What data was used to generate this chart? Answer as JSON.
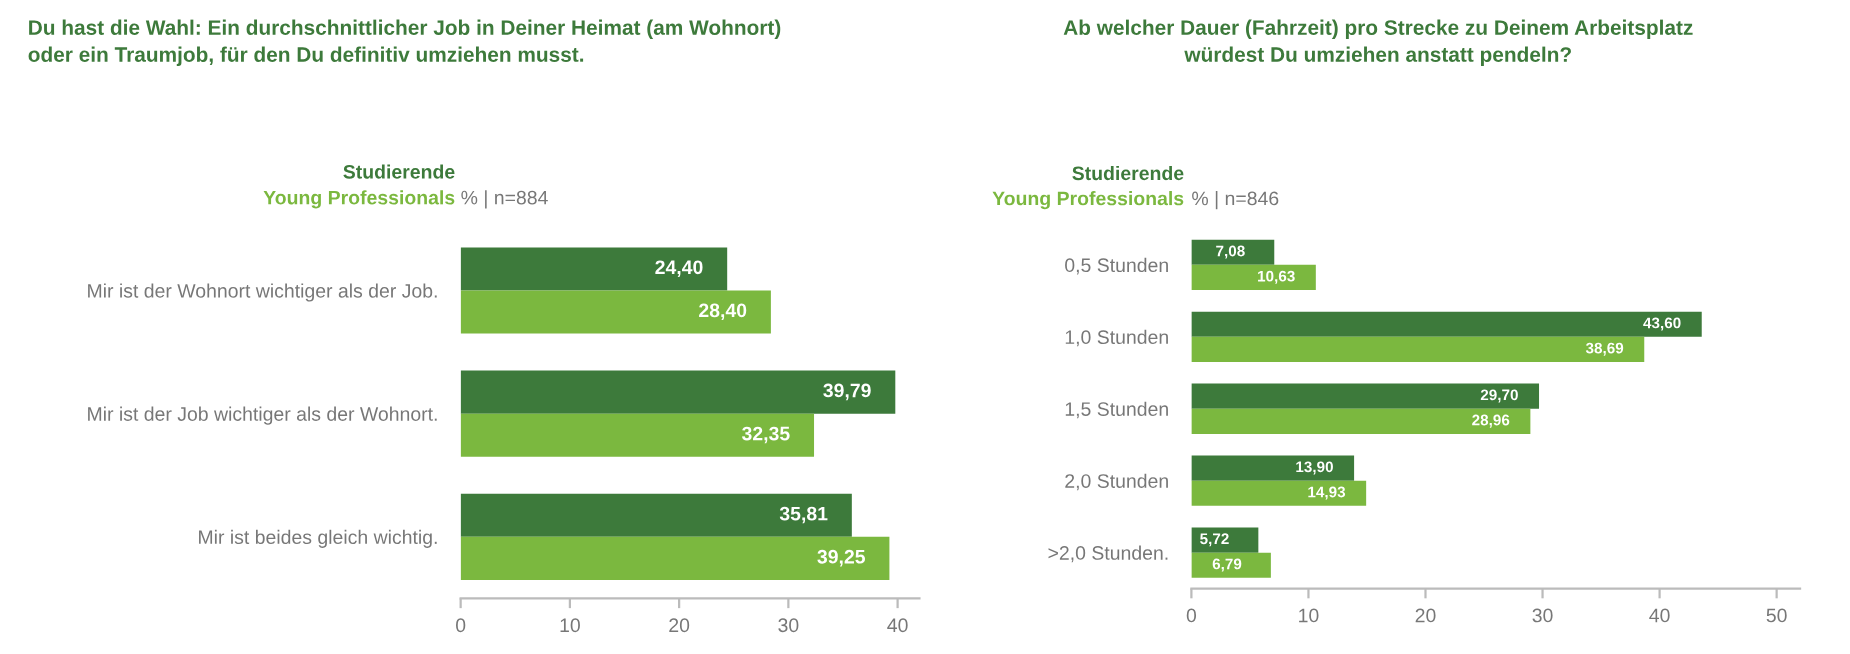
{
  "chart_data": [
    {
      "type": "bar",
      "orientation": "horizontal",
      "title": "Du hast die Wahl: Ein durchschnittlicher Job in Deiner Heimat (am Wohnort)\noder ein Traumjob, für den Du definitiv umziehen musst.",
      "subtitle": "% | n=884",
      "categories": [
        "Mir ist der Wohnort wichtiger als der Job.",
        "Mir ist der Job wichtiger als der Wohnort.",
        "Mir ist beides gleich wichtig."
      ],
      "series": [
        {
          "name": "Studierende",
          "color": "#3d7a3b",
          "values": [
            24.4,
            39.79,
            35.81
          ],
          "value_labels": [
            "24,40",
            "39,79",
            "35,81"
          ]
        },
        {
          "name": "Young Professionals",
          "color": "#7bb83f",
          "values": [
            28.4,
            32.35,
            39.25
          ],
          "value_labels": [
            "28,40",
            "32,35",
            "39,25"
          ]
        }
      ],
      "xlim": [
        0,
        42
      ],
      "xticks": [
        0,
        10,
        20,
        30,
        40
      ],
      "grid": false,
      "legend": "top left"
    },
    {
      "type": "bar",
      "orientation": "horizontal",
      "title": "Ab welcher Dauer (Fahrzeit) pro Strecke zu Deinem Arbeitsplatz\nwürdest Du umziehen anstatt pendeln?",
      "subtitle": "% | n=846",
      "categories": [
        "0,5 Stunden",
        "1,0 Stunden",
        "1,5 Stunden",
        "2,0 Stunden",
        ">2,0 Stunden."
      ],
      "series": [
        {
          "name": "Studierende",
          "color": "#3d7a3b",
          "values": [
            7.08,
            43.6,
            29.7,
            13.9,
            5.72
          ],
          "value_labels": [
            "7,08",
            "43,60",
            "29,70",
            "13,90",
            "5,72"
          ]
        },
        {
          "name": "Young Professionals",
          "color": "#7bb83f",
          "values": [
            10.63,
            38.69,
            28.96,
            14.93,
            6.79
          ],
          "value_labels": [
            "10,63",
            "38,69",
            "28,96",
            "14,93",
            "6,79"
          ]
        }
      ],
      "xlim": [
        0,
        52
      ],
      "xticks": [
        0,
        10,
        20,
        30,
        40,
        50
      ],
      "grid": false,
      "legend": "top left"
    }
  ]
}
